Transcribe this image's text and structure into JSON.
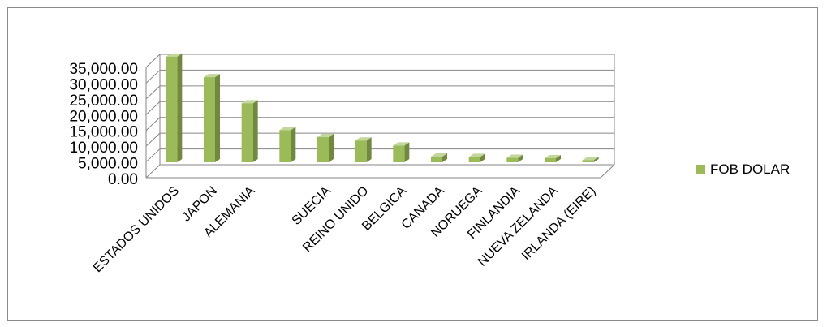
{
  "chart_data": {
    "type": "bar",
    "style": "3d-column",
    "categories": [
      "ESTADOS UNIDOS",
      "JAPON",
      "ALEMANIA",
      "",
      "SUECIA",
      "REINO UNIDO",
      "BELGICA",
      "CANADA",
      "NORUEGA",
      "FINLANDIA",
      "NUEVA ZELANDA",
      "IRLANDA (EIRE)"
    ],
    "series": [
      {
        "name": "FOB DOLAR",
        "values": [
          33500,
          27000,
          18700,
          10200,
          8000,
          6900,
          5300,
          1800,
          1700,
          1400,
          1300,
          700
        ]
      }
    ],
    "ylim": [
      0,
      35000
    ],
    "yticks": [
      "0.00",
      "5,000.00",
      "10,000.00",
      "15,000.00",
      "20,000.00",
      "25,000.00",
      "30,000.00",
      "35,000.00"
    ],
    "grid": true,
    "legend_position": "right",
    "colors": {
      "bar_front": "#9BBB59",
      "bar_side": "#71893f",
      "bar_top": "#c3d69b",
      "grid": "#868686"
    }
  }
}
